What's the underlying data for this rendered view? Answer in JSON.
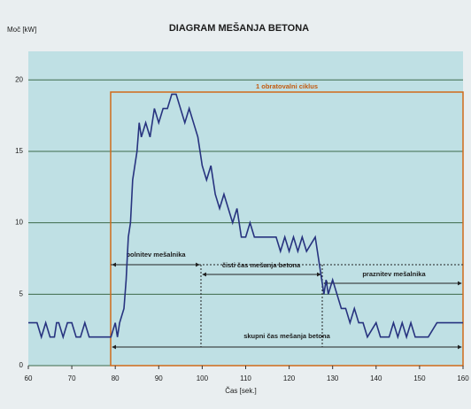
{
  "chart_data": {
    "type": "line",
    "title": "DIAGRAM MEŠANJA BETONA",
    "y_label": "Moč [kW]",
    "x_label": "Čas [sek.]",
    "x": [
      60,
      62,
      63,
      64,
      65,
      66,
      66.5,
      67,
      68,
      69,
      70,
      71,
      72,
      73,
      74,
      76,
      78,
      79,
      80,
      80.5,
      81,
      82,
      82.5,
      83,
      83.5,
      84,
      85,
      85.5,
      86,
      87,
      88,
      88.5,
      89,
      90,
      91,
      92,
      93,
      94,
      95,
      96,
      97,
      98,
      99,
      100,
      101,
      102,
      103,
      104,
      105,
      106,
      107,
      108,
      109,
      110,
      111,
      112,
      113,
      114,
      115,
      116,
      117,
      118,
      119,
      120,
      121,
      122,
      123,
      124,
      126,
      127,
      128,
      128.5,
      129,
      130,
      131,
      132,
      133,
      134,
      135,
      136,
      137,
      138,
      140,
      141,
      143,
      144,
      145,
      146,
      147,
      148,
      149,
      152,
      154,
      156,
      158,
      160
    ],
    "values": [
      3,
      3,
      2,
      3,
      2,
      2,
      3,
      3,
      2,
      3,
      3,
      2,
      2,
      3,
      2,
      2,
      2,
      2,
      3,
      2,
      3,
      4,
      6,
      9,
      10,
      13,
      15,
      17,
      16,
      17,
      16,
      17,
      18,
      17,
      18,
      18,
      19,
      19,
      18,
      17,
      18,
      17,
      16,
      14,
      13,
      14,
      12,
      11,
      12,
      11,
      10,
      11,
      9,
      9,
      10,
      9,
      9,
      9,
      9,
      9,
      9,
      8,
      9,
      8,
      9,
      8,
      9,
      8,
      9,
      7,
      5,
      6,
      5,
      6,
      5,
      4,
      4,
      3,
      4,
      3,
      3,
      2,
      3,
      2,
      2,
      3,
      2,
      3,
      2,
      3,
      2,
      2,
      3,
      3,
      3,
      3
    ],
    "color": "#27337f",
    "xlim": [
      60,
      160
    ],
    "xticks": [
      60,
      70,
      80,
      90,
      100,
      110,
      120,
      130,
      140,
      150,
      160
    ],
    "ylim": [
      0,
      22
    ],
    "yticks": [
      0,
      5,
      10,
      15,
      20
    ],
    "grid": true,
    "annotations": [
      "1 obratovalni ciklus",
      "polnitev mešalnika",
      "čisti čas mešanja betona",
      "praznitev mešalnika",
      "skupni čas mešanja betona"
    ]
  }
}
